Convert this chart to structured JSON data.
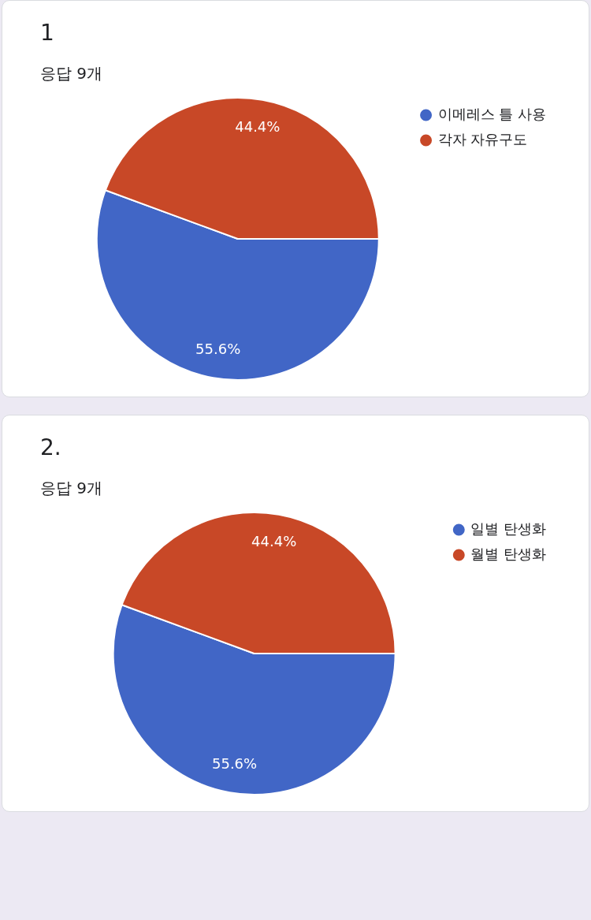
{
  "chart_data": [
    {
      "type": "pie",
      "title": "1",
      "subtitle": "응답 9개",
      "categories": [
        "이메레스 틀 사용",
        "각자 자유구도"
      ],
      "values": [
        55.6,
        44.4
      ],
      "colors": [
        "#4166c6",
        "#c84827"
      ],
      "value_labels": [
        "55.6%",
        "44.4%"
      ],
      "legend": "top right"
    },
    {
      "type": "pie",
      "title": "2.",
      "subtitle": "응답 9개",
      "categories": [
        "일별 탄생화",
        "월별 탄생화"
      ],
      "values": [
        55.6,
        44.4
      ],
      "colors": [
        "#4166c6",
        "#c84827"
      ],
      "value_labels": [
        "55.6%",
        "44.4%"
      ],
      "legend": "top right"
    }
  ]
}
